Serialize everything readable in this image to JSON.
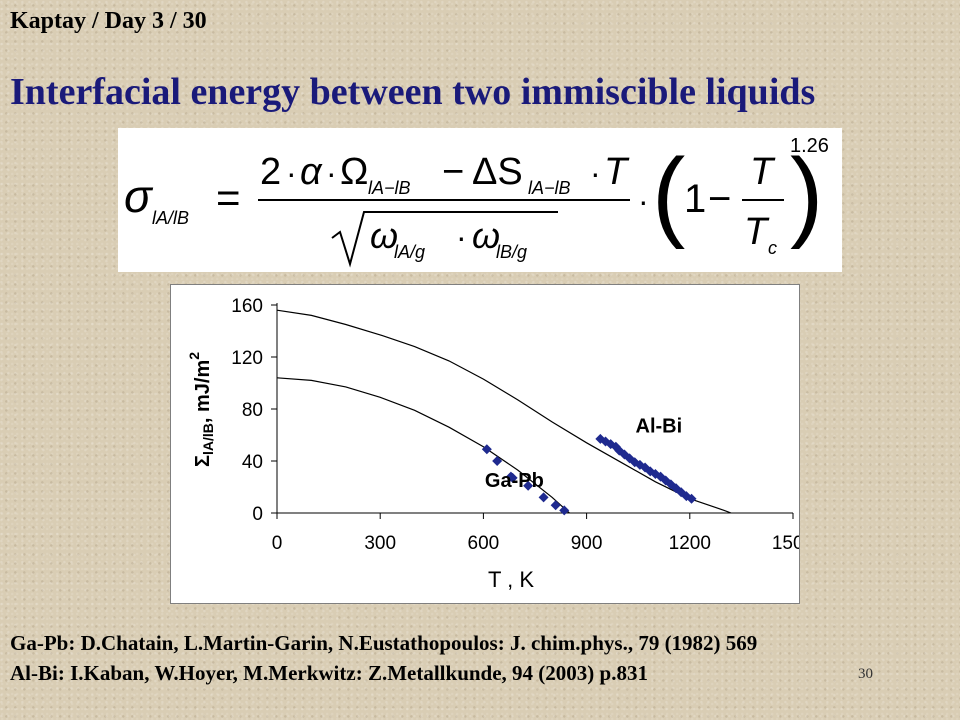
{
  "header": {
    "text": "Kaptay / Day 3 / 30"
  },
  "title": {
    "text": "Interfacial energy between two immiscible liquids"
  },
  "formula": {
    "sigma": "σ",
    "lhs_sub": "lA/lB",
    "equals": "=",
    "num_2": "2",
    "dot": "·",
    "alpha": "α",
    "omega_big": "Ω",
    "num_sub1": "lA−lB",
    "minus": "−",
    "delta_s": "ΔS",
    "num_sub2": "lA−lB",
    "T": "T",
    "omega_small": "ω",
    "den_sub1": "lA/g",
    "den_sub2": "lB/g",
    "paren_open": "(",
    "one": "1",
    "frac_T": "T",
    "Tc": "T",
    "Tc_sub": "c",
    "paren_close": ")",
    "exponent": "1.26"
  },
  "chart_data": {
    "type": "line",
    "title": "",
    "xlabel": "T , K",
    "ylabel_sym": "Σ",
    "ylabel_sub": "lA/lB",
    "ylabel_unit": ", mJ/m",
    "ylabel_sup": "2",
    "xlim": [
      0,
      1500
    ],
    "ylim": [
      0,
      160
    ],
    "xticks": [
      0,
      300,
      600,
      900,
      1200,
      1500
    ],
    "yticks": [
      0,
      40,
      80,
      120,
      160
    ],
    "grid": false,
    "series": [
      {
        "name": "Al-Bi",
        "curve": [
          [
            0,
            156
          ],
          [
            100,
            152
          ],
          [
            200,
            145
          ],
          [
            300,
            137
          ],
          [
            400,
            128
          ],
          [
            500,
            117
          ],
          [
            600,
            103
          ],
          [
            700,
            87
          ],
          [
            800,
            70
          ],
          [
            900,
            54
          ],
          [
            1000,
            39
          ],
          [
            1100,
            24
          ],
          [
            1200,
            11
          ],
          [
            1300,
            2
          ],
          [
            1320,
            0
          ]
        ],
        "points": [
          [
            940,
            57
          ],
          [
            955,
            55
          ],
          [
            970,
            53
          ],
          [
            985,
            51
          ],
          [
            995,
            48
          ],
          [
            1010,
            45
          ],
          [
            1025,
            42
          ],
          [
            1040,
            39
          ],
          [
            1055,
            37
          ],
          [
            1070,
            35
          ],
          [
            1085,
            32
          ],
          [
            1100,
            30
          ],
          [
            1115,
            28
          ],
          [
            1130,
            25
          ],
          [
            1145,
            22
          ],
          [
            1160,
            19
          ],
          [
            1175,
            16
          ],
          [
            1190,
            13
          ],
          [
            1205,
            11
          ]
        ],
        "color": "#1f2a8f"
      },
      {
        "name": "Ga-Pb",
        "curve": [
          [
            0,
            104
          ],
          [
            100,
            102
          ],
          [
            200,
            97
          ],
          [
            300,
            89
          ],
          [
            400,
            79
          ],
          [
            500,
            66
          ],
          [
            600,
            51
          ],
          [
            700,
            33
          ],
          [
            800,
            12
          ],
          [
            850,
            0
          ]
        ],
        "points": [
          [
            610,
            49
          ],
          [
            640,
            40
          ],
          [
            680,
            28
          ],
          [
            685,
            27
          ],
          [
            730,
            21
          ],
          [
            775,
            12
          ],
          [
            810,
            6
          ],
          [
            835,
            2
          ]
        ],
        "color": "#1f2a8f"
      }
    ],
    "series_label_color": "#000000"
  },
  "refs": {
    "line1": "Ga-Pb: D.Chatain, L.Martin-Garin, N.Eustathopoulos: J. chim.phys., 79 (1982) 569",
    "line2": "Al-Bi: I.Kaban, W.Hoyer, M.Merkwitz: Z.Metallkunde, 94 (2003) p.831"
  },
  "slide_number": "30",
  "colors": {
    "title": "#1a1a7a",
    "marker": "#1f2a8f",
    "background": "#d9cdb4"
  }
}
